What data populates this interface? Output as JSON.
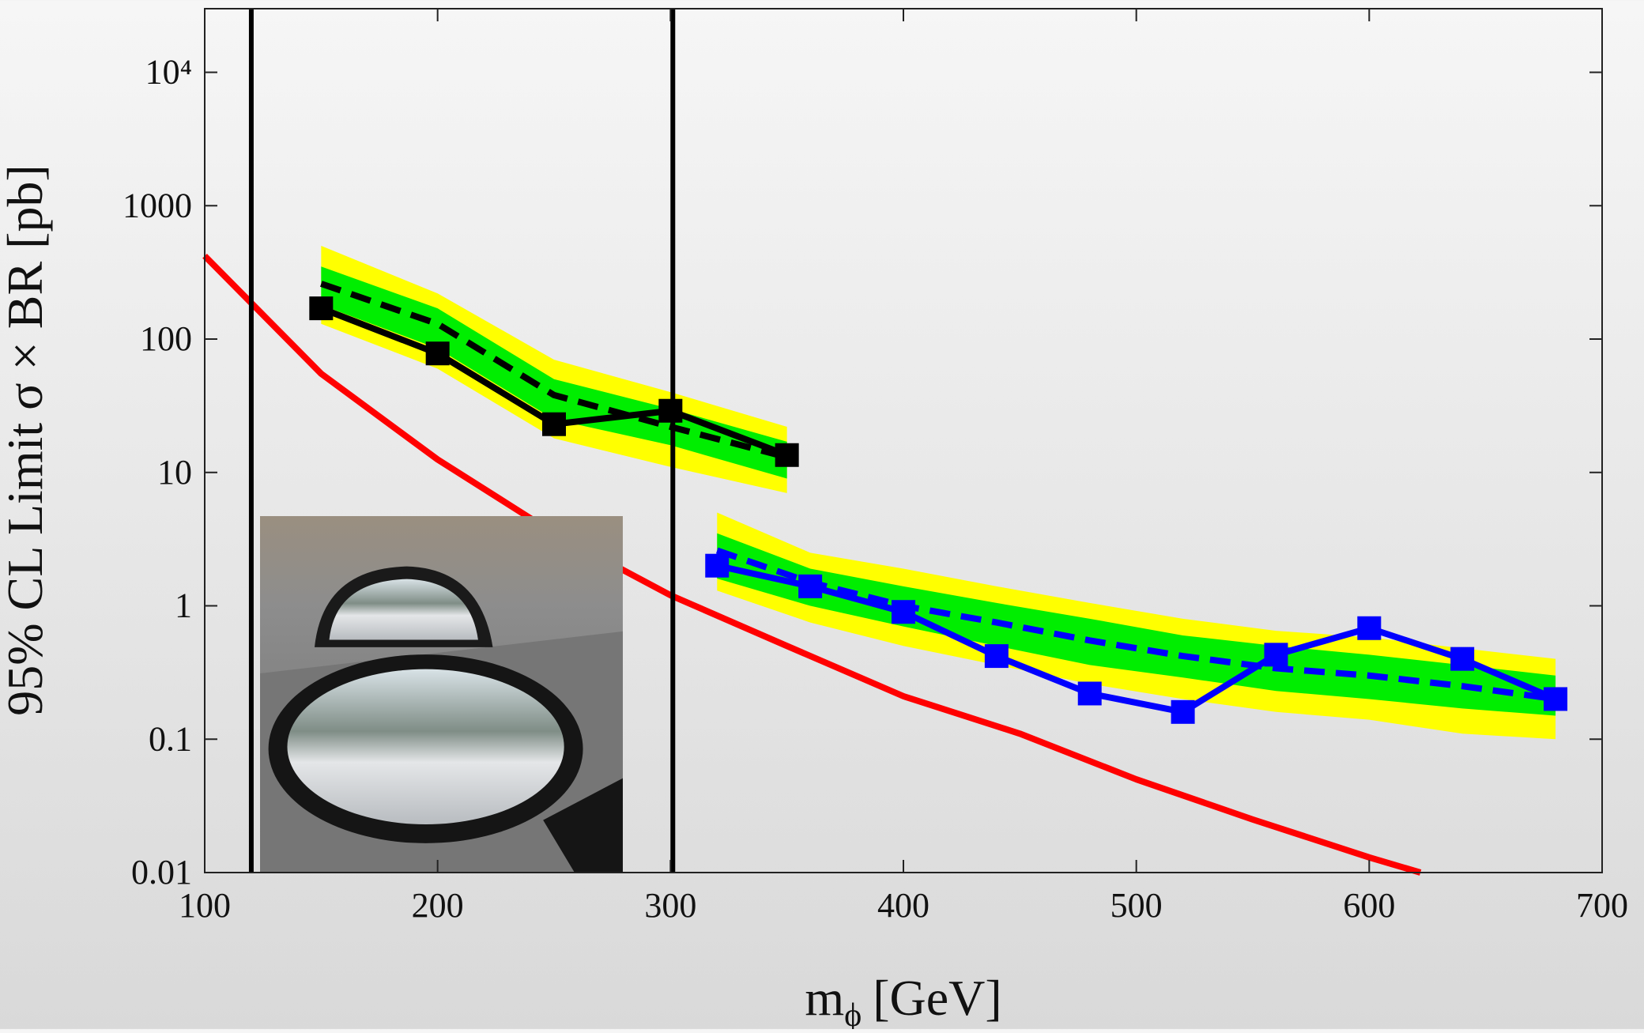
{
  "chart_data": {
    "type": "line",
    "ylabel": "95% CL Limit σ × BR [pb]",
    "xlabel": {
      "main": "m",
      "sub": "ϕ",
      "unit": "[GeV]"
    },
    "xlim": [
      100,
      700
    ],
    "ylim": [
      0.01,
      30000
    ],
    "log_y": true,
    "xticks": [
      100,
      200,
      300,
      400,
      500,
      600,
      700
    ],
    "yticks": [
      0.01,
      0.1,
      1,
      10,
      100,
      1000,
      {
        "value": 10000,
        "label": "10⁴"
      }
    ],
    "bands": [
      {
        "color": "#ffff00",
        "x": [
          150,
          200,
          250,
          300,
          350
        ],
        "lower": [
          130,
          60,
          18,
          11,
          7
        ],
        "upper": [
          500,
          220,
          70,
          40,
          22
        ]
      },
      {
        "color": "#ffff00",
        "x": [
          320,
          360,
          400,
          440,
          480,
          520,
          560,
          600,
          640,
          680
        ],
        "lower": [
          1.3,
          0.75,
          0.5,
          0.36,
          0.26,
          0.2,
          0.16,
          0.14,
          0.11,
          0.1
        ],
        "upper": [
          5,
          2.5,
          1.9,
          1.4,
          1.05,
          0.8,
          0.65,
          0.58,
          0.48,
          0.4
        ]
      },
      {
        "color": "#00ee00",
        "x": [
          150,
          200,
          250,
          300,
          350
        ],
        "lower": [
          180,
          85,
          25,
          16,
          9
        ],
        "upper": [
          350,
          170,
          50,
          30,
          17
        ]
      },
      {
        "color": "#00ee00",
        "x": [
          320,
          360,
          400,
          440,
          480,
          520,
          560,
          600,
          640,
          680
        ],
        "lower": [
          1.6,
          1.0,
          0.7,
          0.5,
          0.36,
          0.29,
          0.23,
          0.2,
          0.17,
          0.15
        ],
        "upper": [
          3.5,
          1.9,
          1.4,
          1.05,
          0.8,
          0.6,
          0.5,
          0.43,
          0.36,
          0.3
        ]
      }
    ],
    "series": [
      {
        "color": "#ff0000",
        "style": "solid",
        "markers": false,
        "x": [
          100,
          150,
          200,
          250,
          300,
          350,
          400,
          450,
          500,
          550,
          600,
          622
        ],
        "values": [
          420,
          55,
          12.5,
          3.5,
          1.2,
          0.5,
          0.21,
          0.11,
          0.05,
          0.025,
          0.013,
          0.01
        ]
      },
      {
        "color": "#000000",
        "style": "dashed",
        "markers": false,
        "x": [
          150,
          200,
          250,
          300,
          350
        ],
        "values": [
          260,
          130,
          38,
          22,
          13
        ]
      },
      {
        "color": "#0000ff",
        "style": "dashed",
        "markers": false,
        "x": [
          320,
          360,
          400,
          440,
          480,
          520,
          560,
          600,
          640,
          680
        ],
        "values": [
          2.6,
          1.5,
          1.0,
          0.75,
          0.55,
          0.42,
          0.34,
          0.3,
          0.25,
          0.2
        ]
      },
      {
        "color": "#000000",
        "style": "solid",
        "markers": true,
        "x": [
          150,
          200,
          250,
          300,
          350
        ],
        "values": [
          170,
          78,
          23,
          29,
          13.5
        ]
      },
      {
        "color": "#0000ff",
        "style": "solid",
        "markers": true,
        "x": [
          320,
          360,
          400,
          440,
          480,
          520,
          560,
          600,
          640,
          680
        ],
        "values": [
          2.0,
          1.4,
          0.9,
          0.42,
          0.22,
          0.16,
          0.43,
          0.68,
          0.4,
          0.2
        ]
      }
    ],
    "vertical_lines": [
      {
        "color": "#000000",
        "x": 120
      },
      {
        "color": "#000000",
        "x": 301
      }
    ]
  }
}
